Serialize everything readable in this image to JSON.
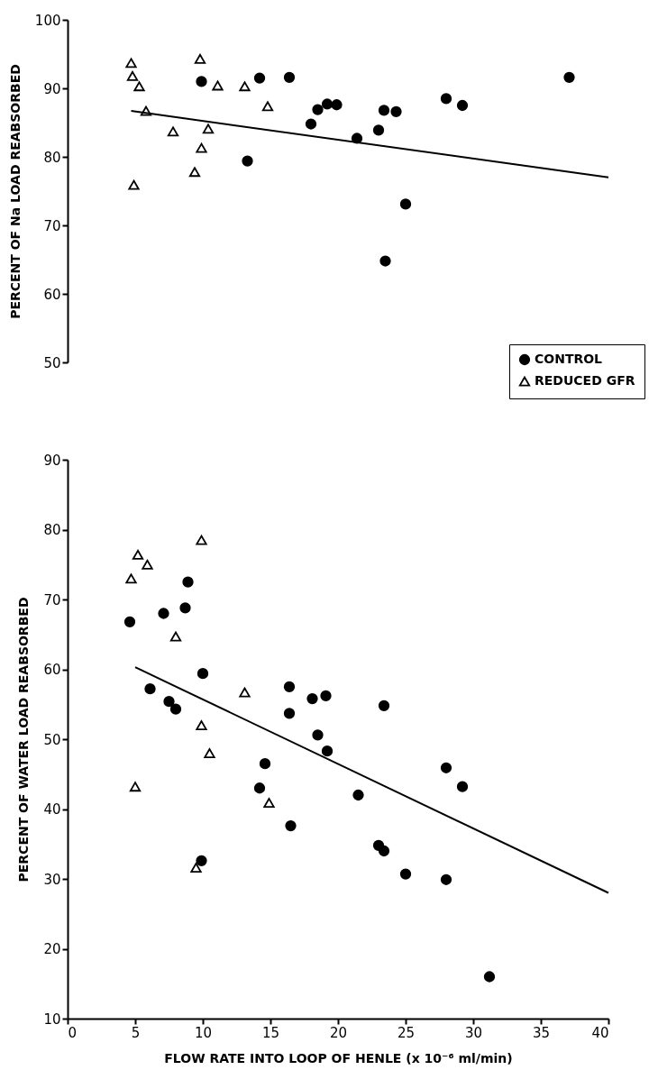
{
  "chart_data": [
    {
      "type": "scatter",
      "ylabel": "PERCENT OF Na LOAD REABSORBED",
      "xlim": [
        0,
        40
      ],
      "ylim": [
        50,
        100
      ],
      "yticks": [
        50,
        60,
        70,
        80,
        90,
        100
      ],
      "tick_labels": "y",
      "grid": false,
      "legend": "bottom right",
      "series": [
        {
          "name": "CONTROL",
          "color": "#000000",
          "marker": "circle",
          "x": [
            9.9,
            14.2,
            16.4,
            18,
            18.5,
            19.2,
            19.9,
            21.4,
            23,
            23.4,
            23.5,
            24.3,
            25,
            28,
            29.2,
            37.1,
            13.3
          ],
          "values": [
            91,
            91.5,
            91.6,
            84.8,
            86.9,
            87.7,
            87.6,
            82.7,
            83.9,
            86.8,
            64.8,
            86.6,
            73.1,
            88.5,
            87.5,
            91.6,
            79.4
          ]
        },
        {
          "name": "REDUCED GFR",
          "color": "#000000",
          "marker": "triangle",
          "x": [
            4.7,
            4.8,
            5.3,
            5.8,
            7.8,
            9.4,
            9.8,
            9.9,
            10.4,
            11.1,
            13.1,
            14.8,
            4.9
          ],
          "values": [
            93.7,
            91.8,
            90.3,
            86.7,
            83.7,
            77.8,
            94.3,
            81.3,
            84.1,
            90.4,
            90.3,
            87.4,
            75.9
          ]
        },
        {
          "type": "line",
          "color": "#000000",
          "x": [
            4.7,
            40
          ],
          "values": [
            86.7,
            77
          ]
        }
      ]
    },
    {
      "type": "scatter",
      "xlabel": "FLOW RATE INTO LOOP OF HENLE  (x 10⁻⁶ ml/min)",
      "ylabel": "PERCENT OF WATER LOAD REABSORBED",
      "xlim": [
        0,
        40
      ],
      "xticks": [
        0,
        5,
        10,
        15,
        20,
        25,
        30,
        35,
        40
      ],
      "ylim": [
        10,
        90
      ],
      "yticks": [
        10,
        20,
        30,
        40,
        50,
        60,
        70,
        80,
        90
      ],
      "grid": false,
      "legend": false,
      "series": [
        {
          "color": "#000000",
          "marker": "circle",
          "x": [
            4.6,
            6.1,
            7.1,
            7.5,
            8,
            8.7,
            8.9,
            10,
            9.9,
            14.2,
            14.6,
            16.4,
            16.4,
            16.5,
            18.1,
            18.5,
            19.1,
            19.2,
            21.5,
            23,
            23.4,
            23.4,
            25,
            28,
            28,
            29.2,
            31.2
          ],
          "values": [
            66.8,
            57.2,
            68,
            55.4,
            54.3,
            68.8,
            72.5,
            59.4,
            32.6,
            43,
            46.5,
            57.5,
            53.7,
            37.6,
            55.8,
            50.6,
            56.2,
            48.3,
            42,
            34.8,
            34,
            54.8,
            30.7,
            45.9,
            29.9,
            43.2,
            16
          ]
        },
        {
          "color": "#000000",
          "marker": "triangle",
          "x": [
            4.7,
            5.2,
            5.9,
            8,
            9.9,
            13.1,
            9.9,
            10.5,
            5,
            14.9,
            9.5
          ],
          "values": [
            73,
            76.4,
            75,
            64.7,
            78.5,
            56.7,
            52,
            48,
            43.2,
            40.9,
            31.6
          ]
        },
        {
          "type": "line",
          "color": "#000000",
          "x": [
            5,
            40
          ],
          "values": [
            60.3,
            28
          ]
        }
      ]
    }
  ]
}
